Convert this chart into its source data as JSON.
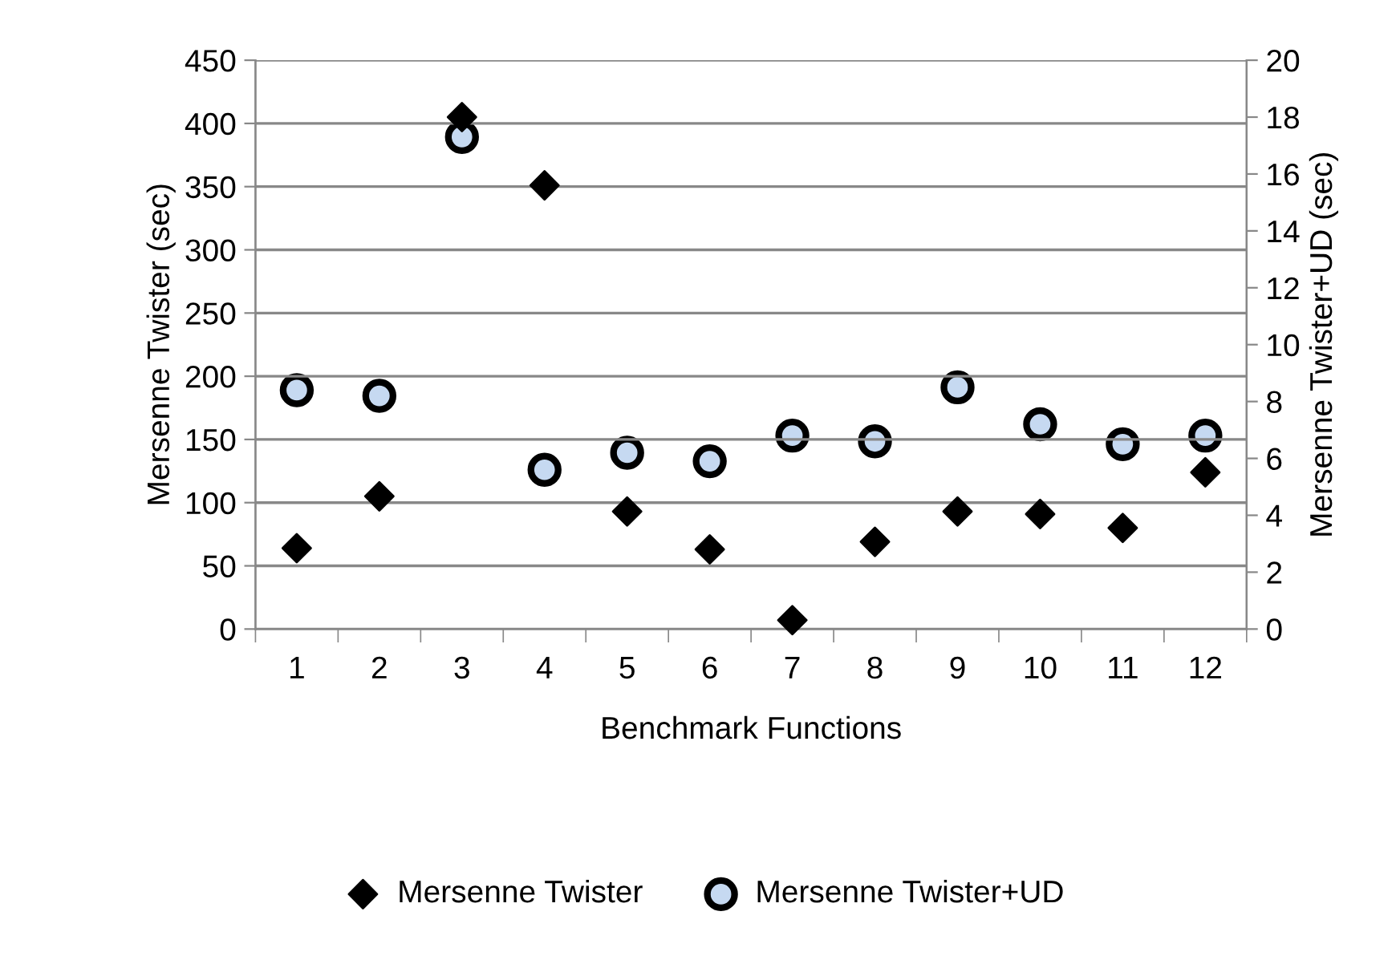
{
  "chart_data": {
    "type": "scatter",
    "xlabel": "Benchmark Functions",
    "ylabel": "Mersenne Twister (sec)",
    "y2label": "Mersenne Twister+UD (sec)",
    "categories": [
      "1",
      "2",
      "3",
      "4",
      "5",
      "6",
      "7",
      "8",
      "9",
      "10",
      "11",
      "12"
    ],
    "series": [
      {
        "name": "Mersenne Twister",
        "color": "#000000",
        "marker": "diamond",
        "values": [
          64,
          105,
          405,
          351,
          93,
          63,
          7,
          69,
          93,
          91,
          80,
          124
        ]
      },
      {
        "name": "Mersenne Twister+UD",
        "color": "#c6d9f1",
        "marker": "circle",
        "axis": "y2",
        "values": [
          8.4,
          8.2,
          17.3,
          5.6,
          6.2,
          5.9,
          6.8,
          6.6,
          8.5,
          7.2,
          6.5,
          6.8
        ]
      }
    ],
    "ylim": [
      0,
      450
    ],
    "yticks": [
      0,
      50,
      100,
      150,
      200,
      250,
      300,
      350,
      400,
      450
    ],
    "y2lim": [
      0,
      20
    ],
    "y2ticks": [
      0,
      2,
      4,
      6,
      8,
      10,
      12,
      14,
      16,
      18,
      20
    ],
    "grid": "y",
    "legend": "bottom"
  }
}
